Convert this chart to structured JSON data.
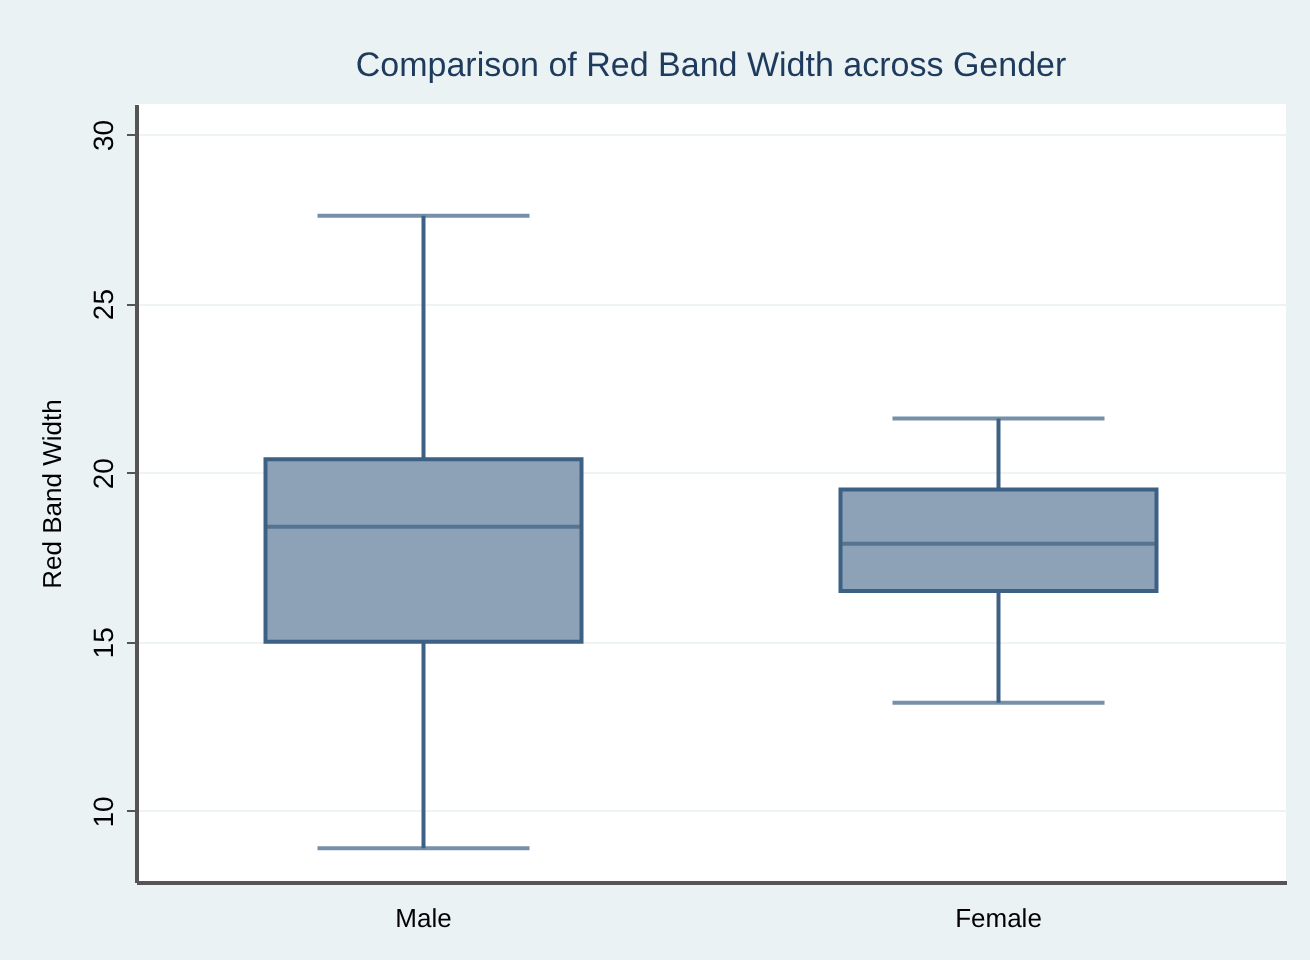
{
  "chart_data": {
    "type": "box",
    "title": "Comparison of Red Band Width across Gender",
    "ylabel": "Red Band Width",
    "categories": [
      "Male",
      "Female"
    ],
    "boxes": [
      {
        "low": 8.9,
        "q1": 15.0,
        "median": 18.4,
        "q3": 20.4,
        "high": 27.6
      },
      {
        "low": 13.2,
        "q1": 16.5,
        "median": 17.9,
        "q3": 19.5,
        "high": 21.6
      }
    ],
    "color": "#8da2b7",
    "ylim": [
      7.9,
      30.9
    ],
    "yticks": [
      10,
      15,
      20,
      25,
      30
    ],
    "grid": "y"
  }
}
